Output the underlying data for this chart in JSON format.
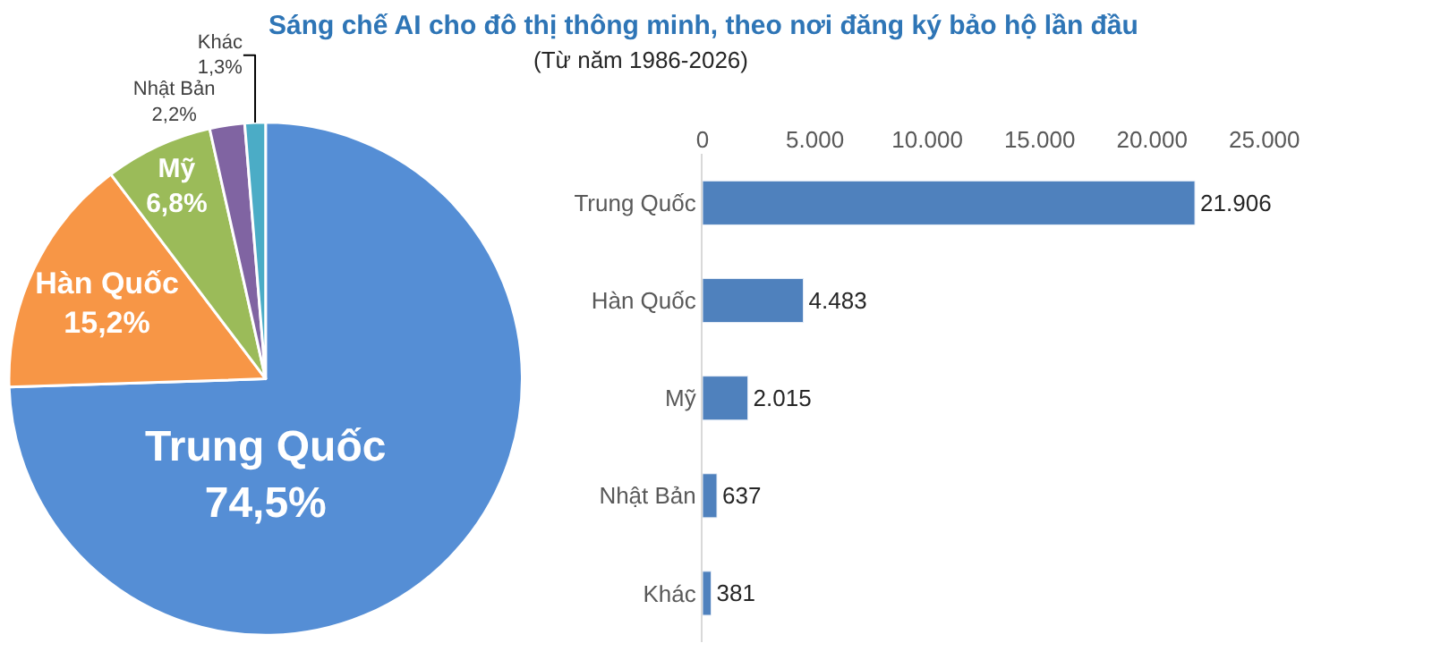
{
  "chart_data": [
    {
      "type": "pie",
      "title": "Sáng chế AI cho đô thị thông minh, theo nơi đăng ký bảo hộ lần đầu",
      "categories": [
        "Trung Quốc",
        "Hàn Quốc",
        "Mỹ",
        "Nhật Bản",
        "Khác"
      ],
      "values": [
        74.5,
        15.2,
        6.8,
        2.2,
        1.3
      ],
      "value_labels": [
        "74,5%",
        "15,2%",
        "6,8%",
        "2,2%",
        "1,3%"
      ],
      "colors": [
        "#558ed5",
        "#f79646",
        "#9bbb59",
        "#8064a2",
        "#4bacc6"
      ],
      "legend": false
    },
    {
      "type": "bar",
      "orientation": "horizontal",
      "subtitle": "(Từ năm 1986-2026)",
      "categories": [
        "Trung Quốc",
        "Hàn Quốc",
        "Mỹ",
        "Nhật Bản",
        "Khác"
      ],
      "values": [
        21906,
        4483,
        2015,
        637,
        381
      ],
      "value_labels": [
        "21.906",
        "4.483",
        "2.015",
        "637",
        "381"
      ],
      "color": "#4f81bd",
      "xlim": [
        0,
        25000
      ],
      "xticks": [
        0,
        {
          "value": 5000,
          "label": "5.000"
        },
        {
          "value": 10000,
          "label": "10.000"
        },
        {
          "value": 15000,
          "label": "15.000"
        },
        {
          "value": 20000,
          "label": "20.000"
        },
        {
          "value": 25000,
          "label": "25.000"
        }
      ],
      "grid": false,
      "legend": false
    }
  ]
}
